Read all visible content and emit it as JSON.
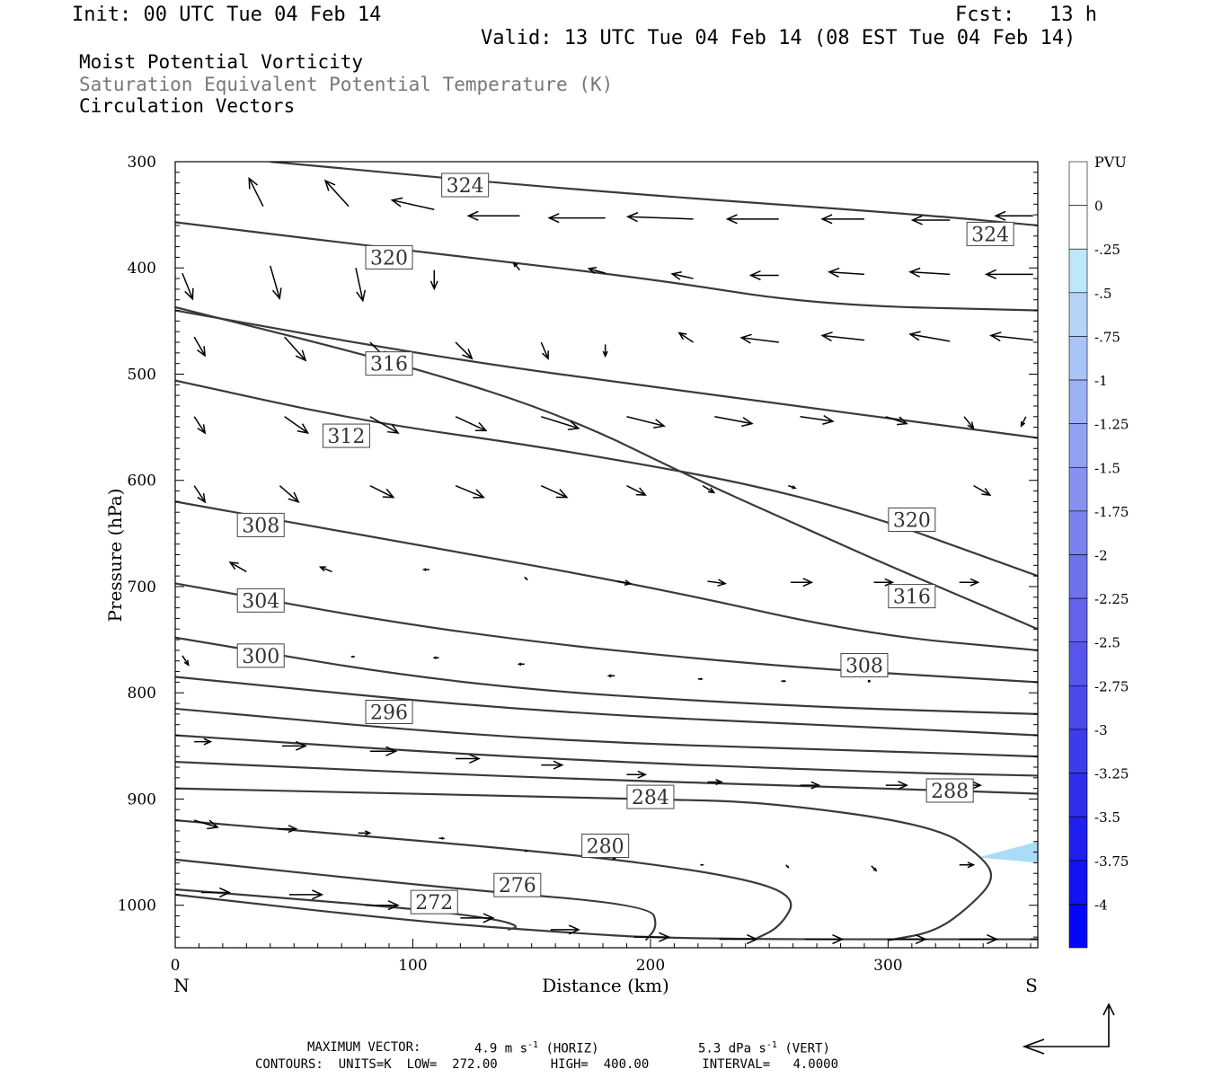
{
  "header": {
    "init": "Init: 00 UTC Tue 04 Feb 14",
    "fcst_label": "Fcst:",
    "fcst_value": "13 h",
    "valid": "Valid: 13 UTC Tue 04 Feb 14 (08 EST Tue 04 Feb 14)"
  },
  "legend_lines": [
    "Moist Potential Vorticity",
    "Saturation Equivalent Potential Temperature (K)",
    "Circulation Vectors"
  ],
  "footer": {
    "max_vector_label": "MAXIMUM VECTOR:",
    "horiz_value": "4.9 m s",
    "horiz_exp": "-1",
    "horiz_unit": " (HORIZ)",
    "vert_value": "5.3 dPa s",
    "vert_exp": "-1",
    "vert_unit": " (VERT)",
    "contours": "CONTOURS:  UNITS=K  LOW=  272.00       HIGH=  400.00       INTERVAL=   4.0000"
  },
  "colorbar": {
    "unit": "PVU",
    "labels": [
      "0",
      "-.25",
      "-.5",
      "-.75",
      "-1",
      "-1.25",
      "-1.5",
      "-1.75",
      "-2",
      "-2.25",
      "-2.5",
      "-2.75",
      "-3",
      "-3.25",
      "-3.5",
      "-3.75",
      "-4"
    ],
    "colors": [
      "#ffffff",
      "#ffffff",
      "#bde8fb",
      "#b5d4f8",
      "#a9c4f6",
      "#9db2f4",
      "#92a2f2",
      "#8792f0",
      "#7a82ee",
      "#6e72ec",
      "#6262eb",
      "#5656ea",
      "#4a4ae9",
      "#3c3cea",
      "#2e2eeb",
      "#2020ee",
      "#1212f2",
      "#0606f6"
    ]
  },
  "chart_data": {
    "type": "contour",
    "xlabel": "Distance (km)",
    "ylabel": "Pressure (hPa)",
    "xlim": [
      0,
      363
    ],
    "ylim": [
      1040,
      300
    ],
    "x_ticks": [
      0,
      100,
      200,
      300
    ],
    "y_ticks": [
      300,
      400,
      500,
      600,
      700,
      800,
      900,
      1000
    ],
    "left_end_label": "N",
    "right_end_label": "S",
    "theta_e_contours": [
      {
        "points": [
          [
            40,
            300
          ],
          [
            170,
            327
          ],
          [
            315,
            350
          ],
          [
            363,
            360
          ]
        ]
      },
      {
        "points": [
          [
            0,
            357
          ],
          [
            110,
            387
          ],
          [
            200,
            410
          ],
          [
            270,
            435
          ],
          [
            363,
            440
          ]
        ]
      },
      {
        "points": [
          [
            0,
            440
          ],
          [
            110,
            484
          ],
          [
            210,
            515
          ],
          [
            363,
            560
          ]
        ]
      },
      {
        "points": [
          [
            0,
            506
          ],
          [
            80,
            545
          ],
          [
            160,
            570
          ],
          [
            270,
            615
          ],
          [
            363,
            690
          ]
        ]
      },
      {
        "points": [
          [
            0,
            437
          ],
          [
            100,
            493
          ],
          [
            165,
            540
          ],
          [
            220,
            600
          ],
          [
            270,
            650
          ],
          [
            300,
            680
          ],
          [
            363,
            740
          ]
        ]
      },
      {
        "points": [
          [
            0,
            620
          ],
          [
            100,
            660
          ],
          [
            200,
            700
          ],
          [
            290,
            745
          ],
          [
            363,
            760
          ]
        ]
      },
      {
        "points": [
          [
            0,
            697
          ],
          [
            120,
            745
          ],
          [
            250,
            775
          ],
          [
            363,
            790
          ]
        ]
      },
      {
        "points": [
          [
            0,
            748
          ],
          [
            120,
            793
          ],
          [
            250,
            812
          ],
          [
            363,
            820
          ]
        ]
      },
      {
        "points": [
          [
            0,
            785
          ],
          [
            150,
            818
          ],
          [
            300,
            833
          ],
          [
            363,
            840
          ]
        ]
      },
      {
        "points": [
          [
            0,
            815
          ],
          [
            150,
            845
          ],
          [
            300,
            855
          ],
          [
            363,
            860
          ]
        ]
      },
      {
        "points": [
          [
            0,
            840
          ],
          [
            150,
            862
          ],
          [
            300,
            875
          ],
          [
            363,
            878
          ]
        ]
      },
      {
        "points": [
          [
            0,
            865
          ],
          [
            150,
            880
          ],
          [
            300,
            890
          ],
          [
            363,
            895
          ]
        ]
      },
      {
        "points": [
          [
            0,
            890
          ],
          [
            200,
            900
          ],
          [
            250,
            903
          ],
          [
            320,
            925
          ],
          [
            340,
            955
          ],
          [
            345,
            975
          ],
          [
            335,
            1000
          ],
          [
            320,
            1025
          ],
          [
            300,
            1033
          ]
        ]
      },
      {
        "points": [
          [
            0,
            920
          ],
          [
            160,
            950
          ],
          [
            230,
            970
          ],
          [
            262,
            990
          ],
          [
            255,
            1020
          ],
          [
            243,
            1033
          ]
        ]
      },
      {
        "points": [
          [
            0,
            957
          ],
          [
            120,
            985
          ],
          [
            200,
            1000
          ],
          [
            203,
            1020
          ],
          [
            198,
            1033
          ]
        ]
      },
      {
        "points": [
          [
            0,
            985
          ],
          [
            100,
            1003
          ],
          [
            135,
            1013
          ],
          [
            145,
            1020
          ],
          [
            140,
            1023
          ]
        ]
      },
      {
        "points": [
          [
            0,
            990
          ],
          [
            100,
            1015
          ],
          [
            160,
            1025
          ],
          [
            210,
            1032
          ],
          [
            363,
            1032
          ]
        ]
      }
    ],
    "contour_labels": [
      {
        "text": "324",
        "x": 122,
        "p": 322
      },
      {
        "text": "324",
        "x": 343,
        "p": 368
      },
      {
        "text": "320",
        "x": 90,
        "p": 390
      },
      {
        "text": "316",
        "x": 90,
        "p": 490
      },
      {
        "text": "312",
        "x": 72,
        "p": 558
      },
      {
        "text": "308",
        "x": 36,
        "p": 642
      },
      {
        "text": "320",
        "x": 310,
        "p": 637
      },
      {
        "text": "316",
        "x": 310,
        "p": 709
      },
      {
        "text": "304",
        "x": 36,
        "p": 713
      },
      {
        "text": "300",
        "x": 36,
        "p": 765
      },
      {
        "text": "308",
        "x": 290,
        "p": 774
      },
      {
        "text": "296",
        "x": 90,
        "p": 818
      },
      {
        "text": "288",
        "x": 326,
        "p": 892
      },
      {
        "text": "284",
        "x": 200,
        "p": 898
      },
      {
        "text": "280",
        "x": 181,
        "p": 944
      },
      {
        "text": "276",
        "x": 144,
        "p": 981
      },
      {
        "text": "272",
        "x": 109,
        "p": 997
      }
    ],
    "pv_shading": [
      {
        "points": [
          [
            338,
            955
          ],
          [
            363,
            940
          ],
          [
            363,
            960
          ]
        ]
      }
    ],
    "vectors": [
      {
        "x": 37,
        "p": 342,
        "u": -3.0,
        "w": -6.0
      },
      {
        "x": 73,
        "p": 342,
        "u": -5.0,
        "w": -5.5
      },
      {
        "x": 109,
        "p": 345,
        "u": -9,
        "w": -2
      },
      {
        "x": 145,
        "p": 351,
        "u": -11,
        "w": 0
      },
      {
        "x": 181,
        "p": 353,
        "u": -12,
        "w": 0
      },
      {
        "x": 218,
        "p": 354,
        "u": -14,
        "w": -0.5
      },
      {
        "x": 254,
        "p": 354,
        "u": -11,
        "w": 0
      },
      {
        "x": 290,
        "p": 354,
        "u": -9,
        "w": 0
      },
      {
        "x": 326,
        "p": 355,
        "u": -8,
        "w": 0
      },
      {
        "x": 361,
        "p": 351,
        "u": -8,
        "w": 0
      },
      {
        "x": 3,
        "p": 405,
        "u": 2.2,
        "w": 5.5
      },
      {
        "x": 40,
        "p": 398,
        "u": 2,
        "w": 7
      },
      {
        "x": 76,
        "p": 400,
        "u": 1.5,
        "w": 7
      },
      {
        "x": 109,
        "p": 402,
        "u": 0,
        "w": 4
      },
      {
        "x": 145,
        "p": 402,
        "u": -1.3,
        "w": -1.5
      },
      {
        "x": 181,
        "p": 405,
        "u": -3.5,
        "w": -1
      },
      {
        "x": 218,
        "p": 410,
        "u": -4.5,
        "w": -1
      },
      {
        "x": 254,
        "p": 407,
        "u": -6,
        "w": 0
      },
      {
        "x": 290,
        "p": 406,
        "u": -7.5,
        "w": -0.5
      },
      {
        "x": 326,
        "p": 406,
        "u": -8.5,
        "w": -0.5
      },
      {
        "x": 361,
        "p": 406,
        "u": -10,
        "w": 0
      },
      {
        "x": 8,
        "p": 465,
        "u": 2.3,
        "w": 4
      },
      {
        "x": 46,
        "p": 465,
        "u": 4.5,
        "w": 5
      },
      {
        "x": 82,
        "p": 470,
        "u": 4,
        "w": 4
      },
      {
        "x": 118,
        "p": 470,
        "u": 3.5,
        "w": 3.5
      },
      {
        "x": 154,
        "p": 470,
        "u": 1.5,
        "w": 3.5
      },
      {
        "x": 181,
        "p": 472,
        "u": 0,
        "w": 2.5
      },
      {
        "x": 218,
        "p": 470,
        "u": -3,
        "w": -2
      },
      {
        "x": 254,
        "p": 470,
        "u": -8,
        "w": -1
      },
      {
        "x": 290,
        "p": 468,
        "u": -9,
        "w": -1
      },
      {
        "x": 326,
        "p": 469,
        "u": -8.5,
        "w": -1.5
      },
      {
        "x": 361,
        "p": 468,
        "u": -9,
        "w": -1
      },
      {
        "x": 8,
        "p": 540,
        "u": 2.3,
        "w": 3.5
      },
      {
        "x": 46,
        "p": 540,
        "u": 5,
        "w": 3.5
      },
      {
        "x": 82,
        "p": 540,
        "u": 6,
        "w": 3.5
      },
      {
        "x": 118,
        "p": 540,
        "u": 6.5,
        "w": 3
      },
      {
        "x": 154,
        "p": 540,
        "u": 8,
        "w": 2.5
      },
      {
        "x": 190,
        "p": 540,
        "u": 8,
        "w": 2
      },
      {
        "x": 227,
        "p": 540,
        "u": 8,
        "w": 1.5
      },
      {
        "x": 263,
        "p": 540,
        "u": 7,
        "w": 1
      },
      {
        "x": 299,
        "p": 540,
        "u": 4.5,
        "w": 1.5
      },
      {
        "x": 332,
        "p": 540,
        "u": 2,
        "w": 2.5
      },
      {
        "x": 358,
        "p": 540,
        "u": -1,
        "w": 2
      },
      {
        "x": 8,
        "p": 605,
        "u": 2.3,
        "w": 3.5
      },
      {
        "x": 44,
        "p": 605,
        "u": 4,
        "w": 3.5
      },
      {
        "x": 82,
        "p": 605,
        "u": 5,
        "w": 2.5
      },
      {
        "x": 118,
        "p": 605,
        "u": 6,
        "w": 2.5
      },
      {
        "x": 154,
        "p": 605,
        "u": 5.5,
        "w": 2.5
      },
      {
        "x": 190,
        "p": 605,
        "u": 4,
        "w": 2
      },
      {
        "x": 222,
        "p": 605,
        "u": 2.4,
        "w": 1.5
      },
      {
        "x": 258,
        "p": 605,
        "u": 1.5,
        "w": 0.5
      },
      {
        "x": 336,
        "p": 605,
        "u": 3.5,
        "w": 2
      },
      {
        "x": 30,
        "p": 686,
        "u": -3.5,
        "w": -2
      },
      {
        "x": 66,
        "p": 686,
        "u": -2.5,
        "w": -1
      },
      {
        "x": 107,
        "p": 684,
        "u": -1.2,
        "w": 0
      },
      {
        "x": 147,
        "p": 691,
        "u": 0.5,
        "w": 0.5
      },
      {
        "x": 186,
        "p": 695,
        "u": 2.8,
        "w": 0.5
      },
      {
        "x": 224,
        "p": 695,
        "u": 3.8,
        "w": 0.5
      },
      {
        "x": 259,
        "p": 696,
        "u": 4.5,
        "w": 0
      },
      {
        "x": 294,
        "p": 696,
        "u": 4,
        "w": 0
      },
      {
        "x": 330,
        "p": 696,
        "u": 4,
        "w": 0
      },
      {
        "x": 3,
        "p": 765,
        "u": 1.3,
        "w": 2
      },
      {
        "x": 74,
        "p": 766,
        "u": 0.6,
        "w": 0
      },
      {
        "x": 111,
        "p": 767,
        "u": -1,
        "w": 0
      },
      {
        "x": 147,
        "p": 773,
        "u": -1.2,
        "w": 0
      },
      {
        "x": 185,
        "p": 784,
        "u": -1.3,
        "w": 0
      },
      {
        "x": 220,
        "p": 787,
        "u": 0.8,
        "w": 0
      },
      {
        "x": 255,
        "p": 789,
        "u": 0.8,
        "w": 0
      },
      {
        "x": 292,
        "p": 789,
        "u": 0,
        "w": 0
      },
      {
        "x": 8,
        "p": 846,
        "u": 3.5,
        "w": 0
      },
      {
        "x": 45,
        "p": 850,
        "u": 5,
        "w": 0
      },
      {
        "x": 82,
        "p": 855,
        "u": 5.5,
        "w": 0
      },
      {
        "x": 118,
        "p": 862,
        "u": 5,
        "w": 0
      },
      {
        "x": 154,
        "p": 868,
        "u": 4.5,
        "w": 0
      },
      {
        "x": 190,
        "p": 877,
        "u": 4,
        "w": 0
      },
      {
        "x": 224,
        "p": 884,
        "u": 3,
        "w": 0
      },
      {
        "x": 263,
        "p": 887,
        "u": 4,
        "w": 0
      },
      {
        "x": 299,
        "p": 887,
        "u": 4.5,
        "w": 0
      },
      {
        "x": 330,
        "p": 887,
        "u": 4.5,
        "w": 0
      },
      {
        "x": 8,
        "p": 920,
        "u": 5,
        "w": 1.5
      },
      {
        "x": 43,
        "p": 928,
        "u": 4,
        "w": 0
      },
      {
        "x": 77,
        "p": 932,
        "u": 2.5,
        "w": 0
      },
      {
        "x": 111,
        "p": 937,
        "u": 1,
        "w": 0
      },
      {
        "x": 147,
        "p": 949,
        "u": 0.5,
        "w": 0
      },
      {
        "x": 184,
        "p": 956,
        "u": 0.5,
        "w": 0
      },
      {
        "x": 221,
        "p": 962,
        "u": 0.5,
        "w": 0
      },
      {
        "x": 257,
        "p": 962,
        "u": 0.5,
        "w": 0.5
      },
      {
        "x": 293,
        "p": 963,
        "u": 1,
        "w": 1
      },
      {
        "x": 330,
        "p": 962,
        "u": 3,
        "w": 0
      },
      {
        "x": 11,
        "p": 988,
        "u": 6,
        "w": 0
      },
      {
        "x": 48,
        "p": 990,
        "u": 7,
        "w": 0
      },
      {
        "x": 80,
        "p": 1000,
        "u": 7,
        "w": 0
      },
      {
        "x": 120,
        "p": 1012,
        "u": 7,
        "w": 0
      },
      {
        "x": 158,
        "p": 1023,
        "u": 6,
        "w": 0
      },
      {
        "x": 193,
        "p": 1030,
        "u": 7.5,
        "w": 0
      },
      {
        "x": 229,
        "p": 1032,
        "u": 8,
        "w": 0
      },
      {
        "x": 265,
        "p": 1032,
        "u": 8,
        "w": 0
      },
      {
        "x": 300,
        "p": 1032,
        "u": 8,
        "w": 0
      },
      {
        "x": 330,
        "p": 1032,
        "u": 8,
        "w": 0
      },
      {
        "x": 360,
        "p": 1032,
        "u": 8,
        "w": 0
      }
    ]
  }
}
